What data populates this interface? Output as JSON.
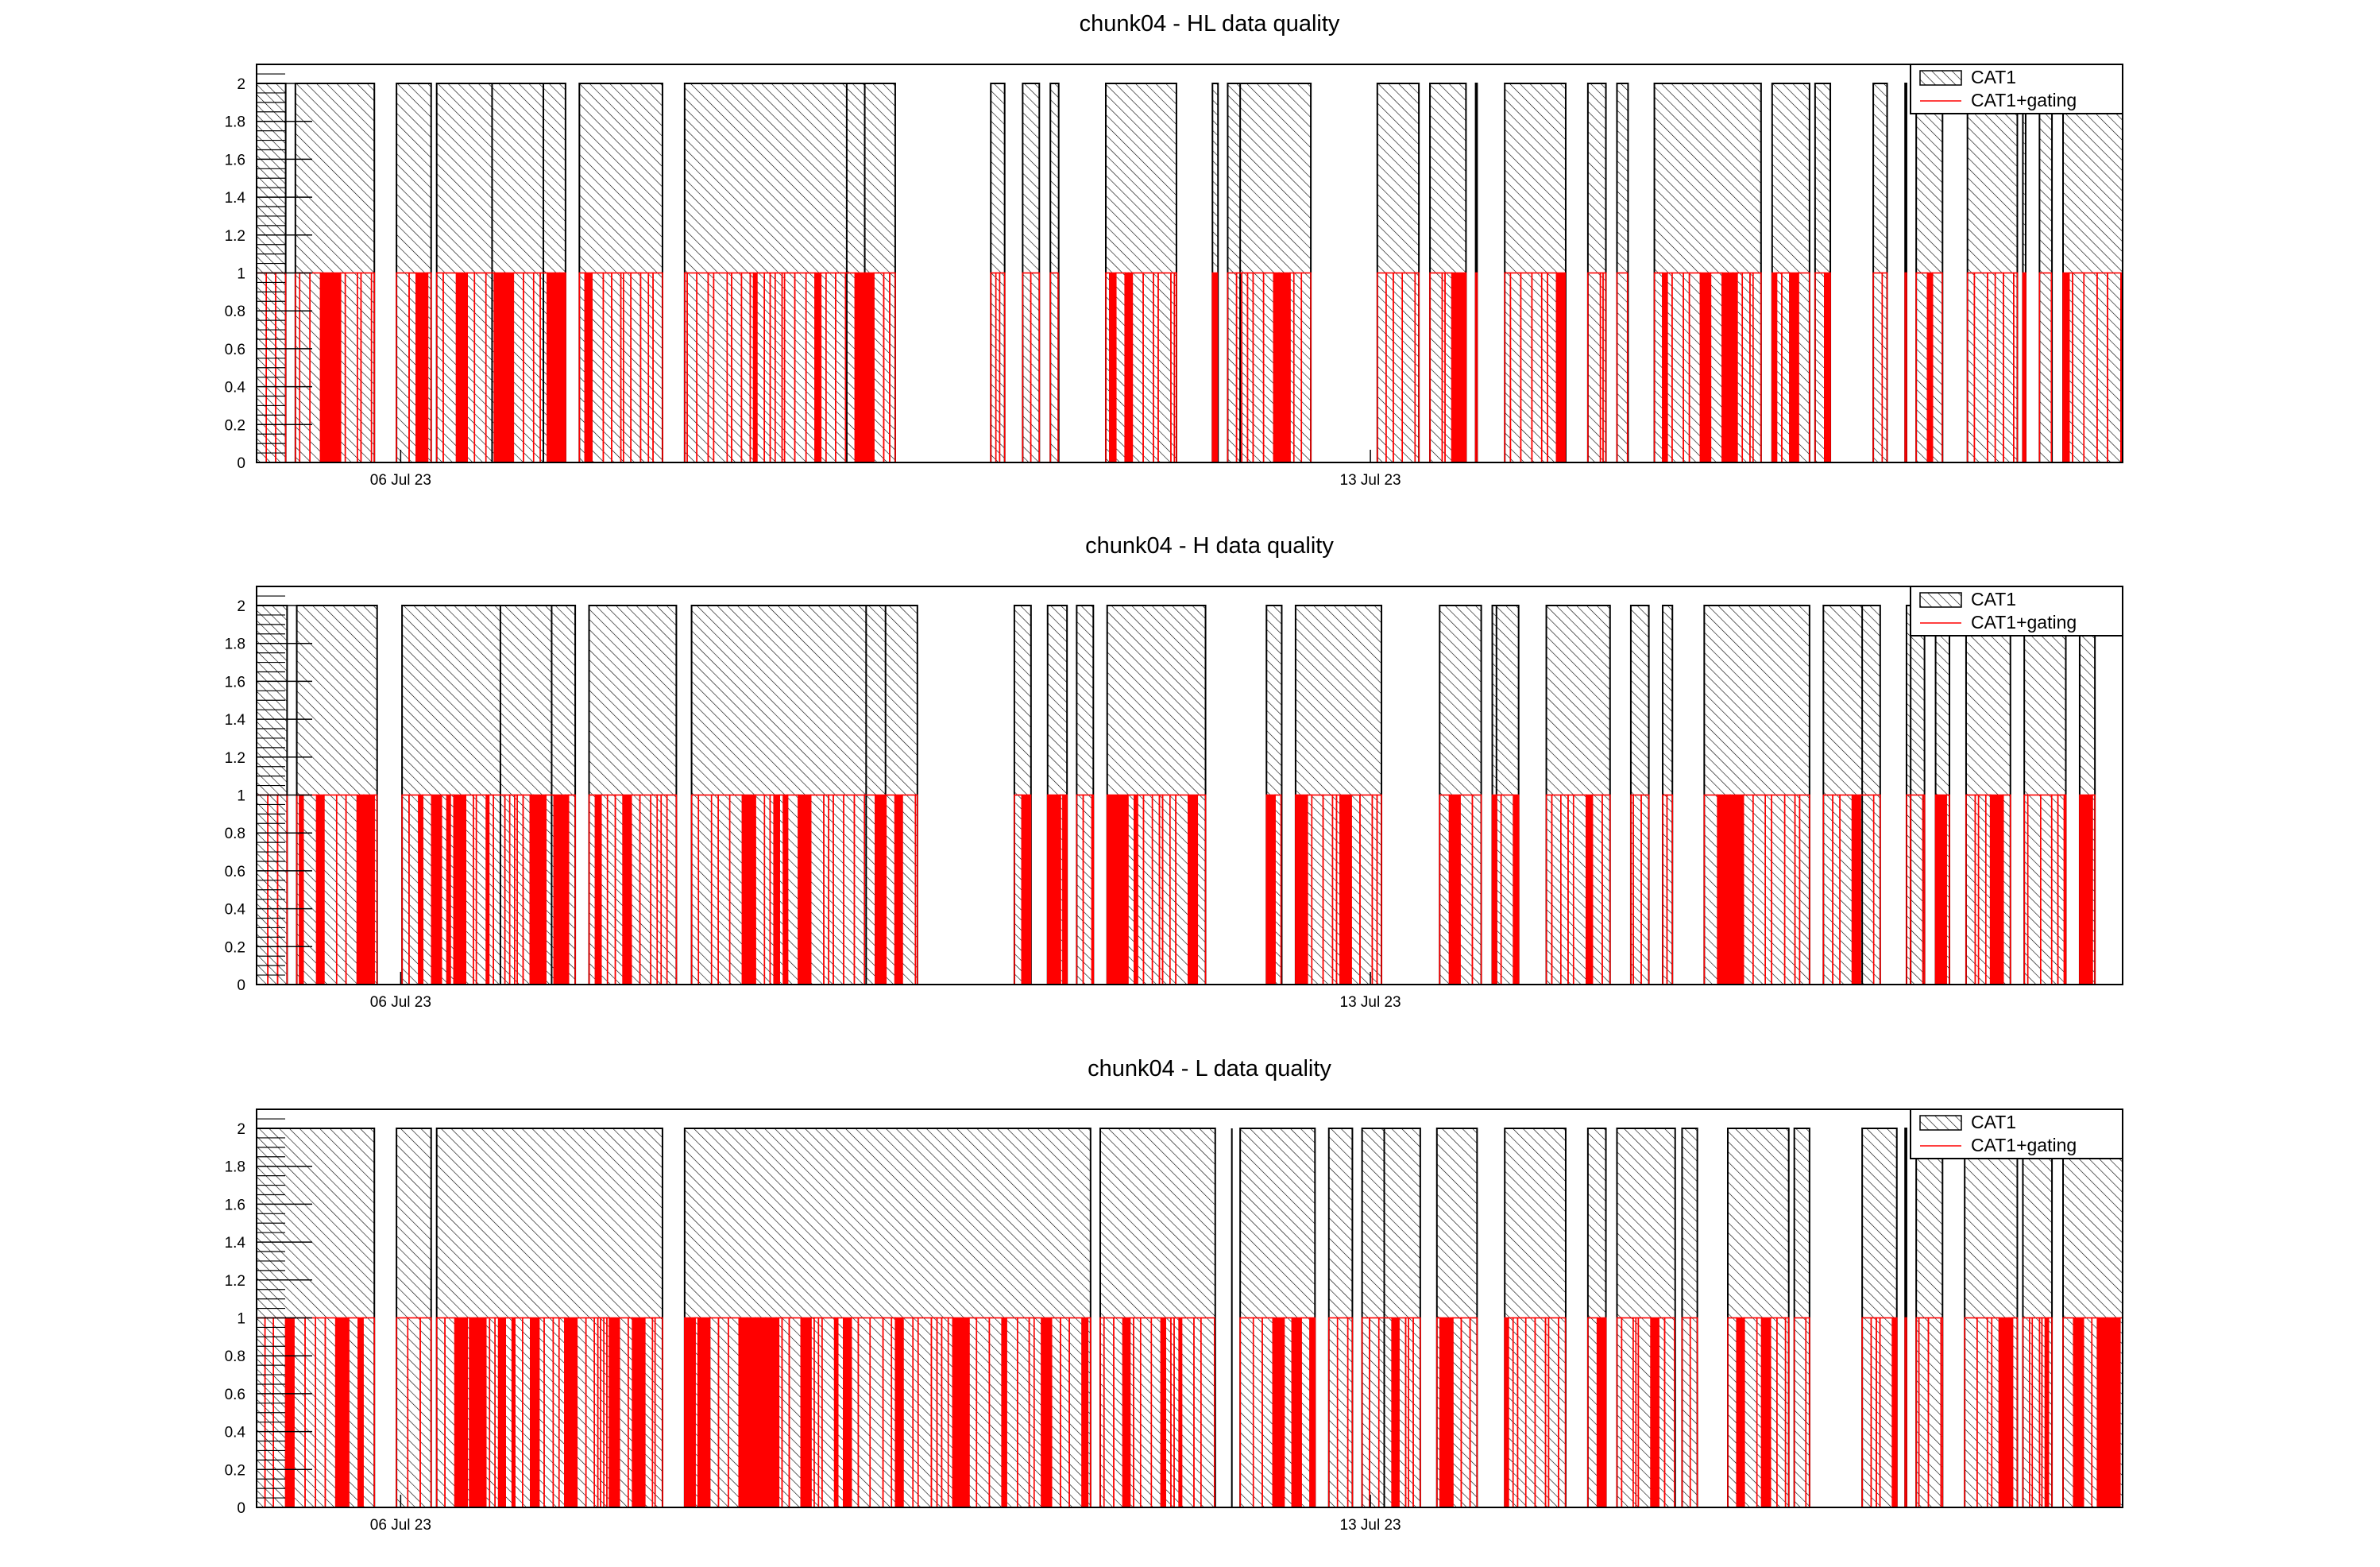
{
  "chart_data": [
    {
      "type": "bar",
      "title": "chunk04 - HL data quality",
      "xlabel": "",
      "ylabel": "",
      "x_units": "days since 06 Jul 23 00:00",
      "xlim": [
        -1.04,
        12.43
      ],
      "ylim": [
        0,
        2.1
      ],
      "y_ticks": [
        "0",
        "0.2",
        "0.4",
        "0.6",
        "0.8",
        "1",
        "1.2",
        "1.4",
        "1.6",
        "1.8",
        "2"
      ],
      "x_ticks": [
        {
          "label": "06 Jul 23",
          "value": 0
        },
        {
          "label": "13 Jul 23",
          "value": 7
        }
      ],
      "legend": {
        "placement": "top-right",
        "entries": [
          {
            "label": "CAT1",
            "style": "hatched"
          },
          {
            "label": "CAT1+gating",
            "style": "red-line"
          }
        ]
      },
      "series": [
        {
          "name": "CAT1",
          "value": 2,
          "segments": [
            [
              -1.04,
              -0.83
            ],
            [
              -0.76,
              -0.19
            ],
            [
              -0.03,
              0.22
            ],
            [
              0.26,
              1.19
            ],
            [
              1.29,
              1.89
            ],
            [
              2.05,
              3.57
            ],
            [
              4.26,
              4.36
            ],
            [
              4.49,
              4.61
            ],
            [
              4.69,
              4.75
            ],
            [
              5.09,
              5.6
            ],
            [
              5.86,
              5.9
            ],
            [
              5.97,
              6.57
            ],
            [
              7.05,
              7.35
            ],
            [
              7.43,
              7.69
            ],
            [
              7.76,
              7.77
            ],
            [
              7.97,
              8.41
            ],
            [
              8.57,
              8.7
            ],
            [
              8.78,
              8.86
            ],
            [
              9.05,
              9.82
            ],
            [
              9.9,
              10.17
            ],
            [
              10.21,
              10.32
            ],
            [
              10.63,
              10.73
            ],
            [
              10.86,
              10.87
            ],
            [
              10.94,
              11.13
            ],
            [
              11.31,
              11.67
            ],
            [
              11.71,
              11.73
            ],
            [
              11.83,
              11.92
            ],
            [
              12.0,
              12.43
            ]
          ],
          "dividers": [
            0.66,
            1.03,
            3.22,
            3.35,
            6.06
          ]
        },
        {
          "name": "CAT1+gating",
          "value": 1,
          "segments": "same as CAT1, subdivided into many short gated bins"
        }
      ]
    },
    {
      "type": "bar",
      "title": "chunk04 - H data quality",
      "xlabel": "",
      "ylabel": "",
      "x_units": "days since 06 Jul 23 00:00",
      "xlim": [
        -1.04,
        12.43
      ],
      "ylim": [
        0,
        2.1
      ],
      "y_ticks": [
        "0",
        "0.2",
        "0.4",
        "0.6",
        "0.8",
        "1",
        "1.2",
        "1.4",
        "1.6",
        "1.8",
        "2"
      ],
      "x_ticks": [
        {
          "label": "06 Jul 23",
          "value": 0
        },
        {
          "label": "13 Jul 23",
          "value": 7
        }
      ],
      "legend": {
        "placement": "top-right",
        "entries": [
          {
            "label": "CAT1",
            "style": "hatched"
          },
          {
            "label": "CAT1+gating",
            "style": "red-line"
          }
        ]
      },
      "series": [
        {
          "name": "CAT1",
          "value": 2,
          "segments": [
            [
              -1.04,
              -0.82
            ],
            [
              -0.75,
              -0.17
            ],
            [
              0.01,
              1.26
            ],
            [
              1.36,
              1.99
            ],
            [
              2.1,
              3.73
            ],
            [
              4.43,
              4.55
            ],
            [
              4.67,
              4.81
            ],
            [
              4.88,
              5.0
            ],
            [
              5.1,
              5.81
            ],
            [
              6.25,
              6.36
            ],
            [
              6.46,
              7.08
            ],
            [
              7.5,
              7.8
            ],
            [
              7.88,
              8.07
            ],
            [
              8.27,
              8.73
            ],
            [
              8.88,
              9.01
            ],
            [
              9.11,
              9.18
            ],
            [
              9.41,
              10.17
            ],
            [
              10.27,
              10.68
            ],
            [
              10.87,
              11.0
            ],
            [
              11.08,
              11.18
            ],
            [
              11.3,
              11.62
            ],
            [
              11.72,
              12.02
            ],
            [
              12.12,
              12.23
            ]
          ],
          "dividers": [
            0.72,
            1.09,
            3.36,
            3.5,
            7.91,
            10.55,
            10.9
          ]
        },
        {
          "name": "CAT1+gating",
          "value": 1,
          "segments": "same as CAT1, subdivided into many short gated bins"
        }
      ]
    },
    {
      "type": "bar",
      "title": "chunk04 - L data quality",
      "xlabel": "",
      "ylabel": "",
      "x_units": "days since 06 Jul 23 00:00",
      "xlim": [
        -1.04,
        12.43
      ],
      "ylim": [
        0,
        2.1
      ],
      "y_ticks": [
        "0",
        "0.2",
        "0.4",
        "0.6",
        "0.8",
        "1",
        "1.2",
        "1.4",
        "1.6",
        "1.8",
        "2"
      ],
      "x_ticks": [
        {
          "label": "06 Jul 23",
          "value": 0
        },
        {
          "label": "13 Jul 23",
          "value": 7
        }
      ],
      "legend": {
        "placement": "top-right",
        "entries": [
          {
            "label": "CAT1",
            "style": "hatched"
          },
          {
            "label": "CAT1+gating",
            "style": "red-line"
          }
        ]
      },
      "series": [
        {
          "name": "CAT1",
          "value": 2,
          "segments": [
            [
              -1.04,
              -0.19
            ],
            [
              -0.03,
              0.22
            ],
            [
              0.26,
              1.89
            ],
            [
              2.05,
              4.98
            ],
            [
              5.05,
              5.88
            ],
            [
              6.06,
              6.6
            ],
            [
              6.7,
              6.87
            ],
            [
              6.94,
              7.36
            ],
            [
              7.48,
              7.77
            ],
            [
              7.97,
              8.41
            ],
            [
              8.57,
              8.7
            ],
            [
              8.78,
              9.2
            ],
            [
              9.25,
              9.36
            ],
            [
              9.58,
              10.02
            ],
            [
              10.06,
              10.17
            ],
            [
              10.55,
              10.8
            ],
            [
              10.86,
              10.87
            ],
            [
              10.94,
              11.13
            ],
            [
              11.29,
              11.67
            ],
            [
              11.71,
              11.92
            ],
            [
              12.0,
              12.43
            ]
          ],
          "dividers": [
            6.0,
            7.1
          ]
        },
        {
          "name": "CAT1+gating",
          "value": 1,
          "segments": "same as CAT1, subdivided into many short gated bins"
        }
      ]
    }
  ],
  "colors": {
    "cat1_hatch": "#000000",
    "gating": "#ff0000",
    "frame": "#000000",
    "background": "#ffffff"
  }
}
